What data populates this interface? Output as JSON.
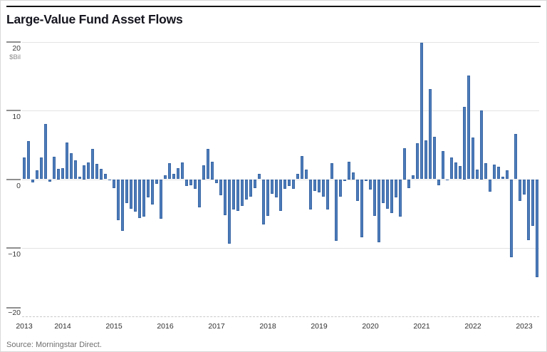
{
  "header": {
    "title": "Large-Value Fund Asset Flows"
  },
  "footer": {
    "source": "Source: Morningstar Direct."
  },
  "chart_data": {
    "type": "bar",
    "title": "Large-Value Fund Asset Flows",
    "unit_label": "$Bil",
    "xlabel": "",
    "ylabel": "$Bil",
    "ylim": [
      -20,
      20
    ],
    "grid": "horizontal",
    "legend": "none",
    "bar_color": "#4d7cba",
    "bar_edge_color": "#3a67a5",
    "yticks": [
      {
        "value": 20,
        "label": "20"
      },
      {
        "value": 10,
        "label": "10"
      },
      {
        "value": 0,
        "label": "0"
      },
      {
        "value": -10,
        "label": "−10"
      },
      {
        "value": -20,
        "label": "−20"
      }
    ],
    "year_labels": [
      "2013",
      "2014",
      "2015",
      "2016",
      "2017",
      "2018",
      "2019",
      "2020",
      "2021",
      "2022",
      "2023"
    ],
    "months": [
      "2013-04",
      "2013-05",
      "2013-06",
      "2013-07",
      "2013-08",
      "2013-09",
      "2013-10",
      "2013-11",
      "2013-12",
      "2014-01",
      "2014-02",
      "2014-03",
      "2014-04",
      "2014-05",
      "2014-06",
      "2014-07",
      "2014-08",
      "2014-09",
      "2014-10",
      "2014-11",
      "2014-12",
      "2015-01",
      "2015-02",
      "2015-03",
      "2015-04",
      "2015-05",
      "2015-06",
      "2015-07",
      "2015-08",
      "2015-09",
      "2015-10",
      "2015-11",
      "2015-12",
      "2016-01",
      "2016-02",
      "2016-03",
      "2016-04",
      "2016-05",
      "2016-06",
      "2016-07",
      "2016-08",
      "2016-09",
      "2016-10",
      "2016-11",
      "2016-12",
      "2017-01",
      "2017-02",
      "2017-03",
      "2017-04",
      "2017-05",
      "2017-06",
      "2017-07",
      "2017-08",
      "2017-09",
      "2017-10",
      "2017-11",
      "2017-12",
      "2018-01",
      "2018-02",
      "2018-03",
      "2018-04",
      "2018-05",
      "2018-06",
      "2018-07",
      "2018-08",
      "2018-09",
      "2018-10",
      "2018-11",
      "2018-12",
      "2019-01",
      "2019-02",
      "2019-03",
      "2019-04",
      "2019-05",
      "2019-06",
      "2019-07",
      "2019-08",
      "2019-09",
      "2019-10",
      "2019-11",
      "2019-12",
      "2020-01",
      "2020-02",
      "2020-03",
      "2020-04",
      "2020-05",
      "2020-06",
      "2020-07",
      "2020-08",
      "2020-09",
      "2020-10",
      "2020-11",
      "2020-12",
      "2021-01",
      "2021-02",
      "2021-03",
      "2021-04",
      "2021-05",
      "2021-06",
      "2021-07",
      "2021-08",
      "2021-09",
      "2021-10",
      "2021-11",
      "2021-12",
      "2022-01",
      "2022-02",
      "2022-03",
      "2022-04",
      "2022-05",
      "2022-06",
      "2022-07",
      "2022-08",
      "2022-09",
      "2022-10",
      "2022-11",
      "2022-12",
      "2023-01",
      "2023-02",
      "2023-03",
      "2023-04"
    ],
    "values": [
      3.2,
      5.6,
      -0.5,
      1.3,
      3.2,
      8.1,
      -0.4,
      3.3,
      1.5,
      1.6,
      5.3,
      3.8,
      2.8,
      0.4,
      2.0,
      2.4,
      4.4,
      2.2,
      1.5,
      0.8,
      -0.2,
      -1.3,
      -6.0,
      -7.5,
      -3.5,
      -4.3,
      -4.7,
      -5.7,
      -5.5,
      -2.7,
      -3.7,
      -0.7,
      -5.8,
      0.6,
      2.3,
      0.8,
      1.6,
      2.4,
      -1.0,
      -0.9,
      -1.4,
      -4.1,
      2.0,
      4.4,
      2.5,
      -0.6,
      -2.3,
      -5.2,
      -9.4,
      -4.4,
      -4.6,
      -3.9,
      -3.0,
      -2.5,
      -1.3,
      0.8,
      -6.6,
      -5.3,
      -2.1,
      -2.6,
      -4.6,
      -1.4,
      -1.0,
      -1.4,
      0.8,
      3.4,
      1.4,
      -4.4,
      -1.7,
      -1.9,
      -2.5,
      -4.4,
      2.3,
      -9.0,
      -2.5,
      -0.3,
      2.5,
      1.0,
      -3.2,
      -8.5,
      -0.3,
      -1.5,
      -5.4,
      -9.2,
      -3.5,
      -4.3,
      -4.9,
      -2.7,
      -5.5,
      4.5,
      -1.3,
      0.6,
      5.2,
      19.9,
      5.7,
      13.1,
      6.2,
      -0.9,
      4.1,
      -0.2,
      3.2,
      2.4,
      1.9,
      10.5,
      15.1,
      6.1,
      1.4,
      10.0,
      2.3,
      -1.8,
      2.1,
      1.8,
      0.4,
      1.3,
      -11.4,
      6.6,
      -3.2,
      -2.2,
      -8.9,
      -6.8,
      -14.3
    ]
  }
}
